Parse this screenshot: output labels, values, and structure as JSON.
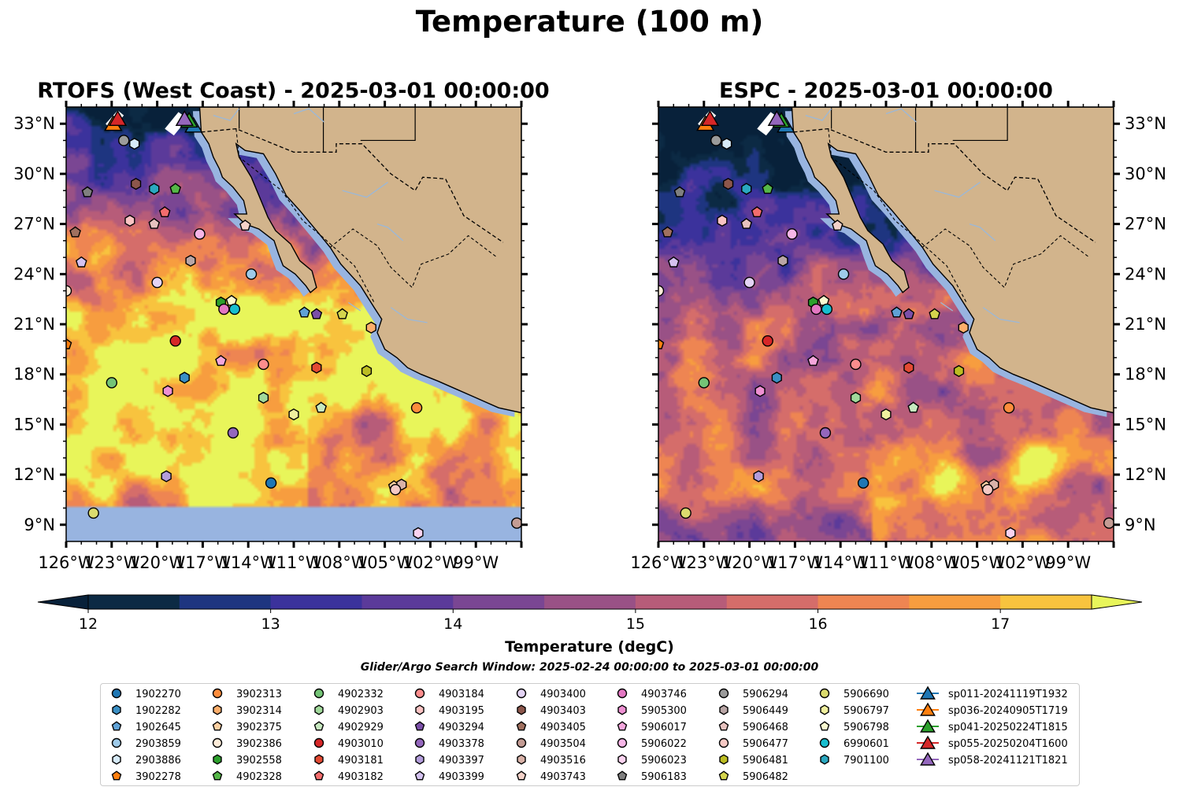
{
  "figure": {
    "title": "Temperature (100 m)",
    "colorbar_label": "Temperature (degC)",
    "search_window": "Glider/Argo Search Window: 2025-02-24 00:00:00 to 2025-03-01 00:00:00"
  },
  "chart_data": [
    {
      "type": "heatmap",
      "title": "RTOFS (West Coast) - 2025-03-01 00:00:00",
      "xlim": [
        -126,
        -96
      ],
      "ylim": [
        8,
        34
      ],
      "x_ticks": [
        "126°W",
        "123°W",
        "120°W",
        "117°W",
        "114°W",
        "111°W",
        "108°W",
        "105°W",
        "102°W",
        "99°W"
      ],
      "y_ticks": [
        "9°N",
        "12°N",
        "15°N",
        "18°N",
        "21°N",
        "24°N",
        "27°N",
        "30°N",
        "33°N"
      ],
      "y_tick_side": "left",
      "no_data_below_lat": 10.1,
      "variable": "Temperature",
      "units": "degC"
    },
    {
      "type": "heatmap",
      "title": "ESPC - 2025-03-01 00:00:00",
      "xlim": [
        -126,
        -96
      ],
      "ylim": [
        8,
        34
      ],
      "x_ticks": [
        "126°W",
        "123°W",
        "120°W",
        "117°W",
        "114°W",
        "111°W",
        "108°W",
        "105°W",
        "102°W",
        "99°W"
      ],
      "y_ticks": [
        "9°N",
        "12°N",
        "15°N",
        "18°N",
        "21°N",
        "24°N",
        "27°N",
        "30°N",
        "33°N"
      ],
      "y_tick_side": "right",
      "variable": "Temperature",
      "units": "degC"
    }
  ],
  "colorbar": {
    "vmin": 12,
    "vmax": 17.5,
    "step": 0.5,
    "ticks": [
      "12",
      "13",
      "14",
      "15",
      "16",
      "17"
    ],
    "extend": "both",
    "colors": [
      "#0c2a44",
      "#1e3580",
      "#3b329c",
      "#5b3a9a",
      "#7a4693",
      "#995186",
      "#b75c79",
      "#d56d6a",
      "#ee8552",
      "#f79d3f",
      "#f8c33e"
    ],
    "under_color": "#08213a",
    "over_color": "#e8f55a"
  },
  "land_color": "#d2b48c",
  "shelf_color": "#98b4e0",
  "markers": [
    {
      "id": "1902270",
      "marker": "circle",
      "color": "#1f77b4",
      "lon": -112.5,
      "lat": 11.5
    },
    {
      "id": "1902282",
      "marker": "hexagon",
      "color": "#3a8fc4",
      "lon": -118.2,
      "lat": 17.8
    },
    {
      "id": "1902645",
      "marker": "pentagon",
      "color": "#5fa2d6",
      "lon": -110.3,
      "lat": 21.7
    },
    {
      "id": "2903859",
      "marker": "circle",
      "color": "#9ecae9",
      "lon": -113.8,
      "lat": 24.0
    },
    {
      "id": "2903886",
      "marker": "hexagon",
      "color": "#d6eaf8",
      "lon": -121.5,
      "lat": 31.8
    },
    {
      "id": "3902278",
      "marker": "pentagon",
      "color": "#ff7f0e",
      "lon": -126.0,
      "lat": 19.8
    },
    {
      "id": "3902313",
      "marker": "circle",
      "color": "#fd8d3c",
      "lon": -102.9,
      "lat": 16.0
    },
    {
      "id": "3902314",
      "marker": "hexagon",
      "color": "#fdae6b",
      "lon": -105.9,
      "lat": 20.8
    },
    {
      "id": "3902375",
      "marker": "pentagon",
      "color": "#fdd0a2",
      "lon": -104.4,
      "lat": 11.3
    },
    {
      "id": "3902386",
      "marker": "circle",
      "color": "#feecd9",
      "lon": -126.0,
      "lat": 23.0
    },
    {
      "id": "3902558",
      "marker": "hexagon",
      "color": "#2ca02c",
      "lon": -115.8,
      "lat": 22.3
    },
    {
      "id": "4902328",
      "marker": "pentagon",
      "color": "#55b748",
      "lon": -118.8,
      "lat": 29.1
    },
    {
      "id": "4902332",
      "marker": "circle",
      "color": "#74c476",
      "lon": -123.0,
      "lat": 17.5
    },
    {
      "id": "4902903",
      "marker": "hexagon",
      "color": "#a1d99b",
      "lon": -113.0,
      "lat": 16.6
    },
    {
      "id": "4902929",
      "marker": "pentagon",
      "color": "#c7e9c0",
      "lon": -109.2,
      "lat": 16.0
    },
    {
      "id": "4903010",
      "marker": "circle",
      "color": "#d62728",
      "lon": -118.8,
      "lat": 20.0
    },
    {
      "id": "4903181",
      "marker": "hexagon",
      "color": "#e34a33",
      "lon": -109.5,
      "lat": 18.4
    },
    {
      "id": "4903182",
      "marker": "pentagon",
      "color": "#f46d6d",
      "lon": -119.5,
      "lat": 27.7
    },
    {
      "id": "4903184",
      "marker": "circle",
      "color": "#fc8d8d",
      "lon": -113.0,
      "lat": 18.6
    },
    {
      "id": "4903195",
      "marker": "hexagon",
      "color": "#fbc3c3",
      "lon": -121.8,
      "lat": 27.2
    },
    {
      "id": "4903294",
      "marker": "pentagon",
      "color": "#7b4fa8",
      "lon": -109.5,
      "lat": 21.6
    },
    {
      "id": "4903378",
      "marker": "circle",
      "color": "#9467bd",
      "lon": -115.0,
      "lat": 14.5
    },
    {
      "id": "4903397",
      "marker": "hexagon",
      "color": "#b39ddb",
      "lon": -119.4,
      "lat": 11.9
    },
    {
      "id": "4903399",
      "marker": "pentagon",
      "color": "#d4c2f0",
      "lon": -125.0,
      "lat": 24.7
    },
    {
      "id": "4903400",
      "marker": "circle",
      "color": "#e4d4f5",
      "lon": -120.0,
      "lat": 23.5
    },
    {
      "id": "4903403",
      "marker": "hexagon",
      "color": "#8c564b",
      "lon": -121.4,
      "lat": 29.4
    },
    {
      "id": "4903405",
      "marker": "pentagon",
      "color": "#a0705f",
      "lon": -125.4,
      "lat": 26.5
    },
    {
      "id": "4903504",
      "marker": "circle",
      "color": "#c49c94",
      "lon": -96.3,
      "lat": 9.1
    },
    {
      "id": "4903516",
      "marker": "hexagon",
      "color": "#d9b2a8",
      "lon": -103.9,
      "lat": 11.4
    },
    {
      "id": "4903743",
      "marker": "pentagon",
      "color": "#f4d2c9",
      "lon": -114.2,
      "lat": 26.9
    },
    {
      "id": "4903746",
      "marker": "circle",
      "color": "#e377c2",
      "lon": -115.6,
      "lat": 21.9
    },
    {
      "id": "5905300",
      "marker": "hexagon",
      "color": "#ee90d2",
      "lon": -119.3,
      "lat": 17.0
    },
    {
      "id": "5906017",
      "marker": "pentagon",
      "color": "#f4a6dc",
      "lon": -115.8,
      "lat": 18.8
    },
    {
      "id": "5906022",
      "marker": "circle",
      "color": "#f7b6e7",
      "lon": -117.2,
      "lat": 26.4
    },
    {
      "id": "5906023",
      "marker": "hexagon",
      "color": "#fbd3f0",
      "lon": -102.8,
      "lat": 8.5
    },
    {
      "id": "5906183",
      "marker": "pentagon",
      "color": "#7f7f7f",
      "lon": -124.6,
      "lat": 28.9
    },
    {
      "id": "5906294",
      "marker": "circle",
      "color": "#9b9b9b",
      "lon": -122.2,
      "lat": 32.0
    },
    {
      "id": "5906449",
      "marker": "hexagon",
      "color": "#b9a6a6",
      "lon": -117.8,
      "lat": 24.8
    },
    {
      "id": "5906468",
      "marker": "pentagon",
      "color": "#e7c2bf",
      "lon": -120.2,
      "lat": 27.0
    },
    {
      "id": "5906477",
      "marker": "circle",
      "color": "#f6c9c4",
      "lon": -104.3,
      "lat": 11.1
    },
    {
      "id": "5906481",
      "marker": "hexagon",
      "color": "#bcbd22",
      "lon": -106.2,
      "lat": 18.2
    },
    {
      "id": "5906482",
      "marker": "pentagon",
      "color": "#d4d44d",
      "lon": -107.8,
      "lat": 21.6
    },
    {
      "id": "5906690",
      "marker": "circle",
      "color": "#dbdb6e",
      "lon": -124.2,
      "lat": 9.7
    },
    {
      "id": "5906797",
      "marker": "hexagon",
      "color": "#f0f09e",
      "lon": -111.0,
      "lat": 15.6
    },
    {
      "id": "5906798",
      "marker": "pentagon",
      "color": "#fbfbd0",
      "lon": -115.1,
      "lat": 22.4
    },
    {
      "id": "6990601",
      "marker": "circle",
      "color": "#17becf",
      "lon": -114.9,
      "lat": 21.9
    },
    {
      "id": "7901100",
      "marker": "hexagon",
      "color": "#2aa8c0",
      "lon": -120.2,
      "lat": 29.1
    }
  ],
  "gliders": [
    {
      "id": "sp011-20241119T1932",
      "color": "#1f77b4",
      "lon": -117.6,
      "lat": 32.9
    },
    {
      "id": "sp036-20240905T1719",
      "color": "#ff7f0e",
      "lon": -122.9,
      "lat": 33.0
    },
    {
      "id": "sp041-20250224T1815",
      "color": "#2ca02c",
      "lon": -117.9,
      "lat": 33.2
    },
    {
      "id": "sp055-20250204T1600",
      "color": "#d62728",
      "lon": -122.6,
      "lat": 33.3
    },
    {
      "id": "sp058-20241121T1821",
      "color": "#9467bd",
      "lon": -118.2,
      "lat": 33.3
    }
  ]
}
